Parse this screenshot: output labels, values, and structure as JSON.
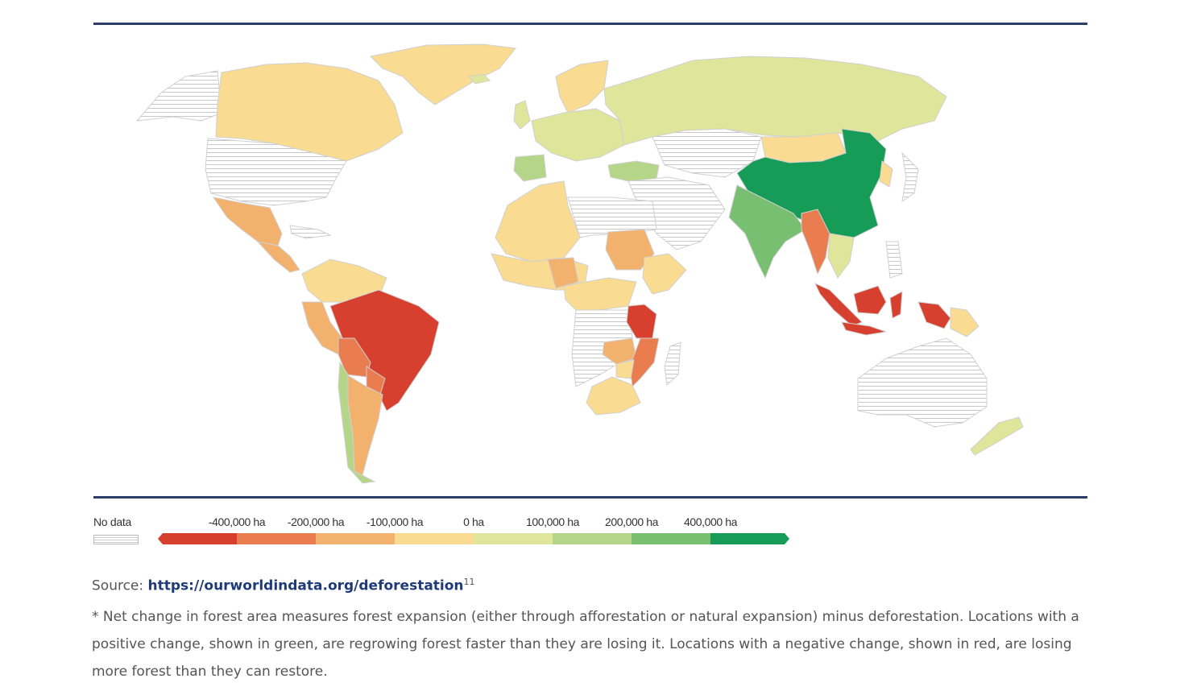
{
  "legend": {
    "no_data_label": "No data",
    "scale_labels": [
      "-400,000 ha",
      "-200,000 ha",
      "-100,000 ha",
      "0 ha",
      "100,000 ha",
      "200,000 ha",
      "400,000 ha"
    ],
    "scale_colors": [
      "#d73f2e",
      "#ea7d4f",
      "#f3b16e",
      "#f9dc92",
      "#dfe59a",
      "#b5d688",
      "#79bf71",
      "#169c57"
    ]
  },
  "source": {
    "prefix": "Source: ",
    "link_text": "https://ourworldindata.org/deforestation",
    "footnote_ref": "11"
  },
  "footnote_text": "* Net change in forest area measures forest expansion (either through afforestation or natural expansion) minus deforestation. Locations with a positive change, shown in green, are regrowing forest faster than they are losing it. Locations with a negative change, shown in red, are losing more forest than they can restore.",
  "colors": {
    "rule": "#2c3e66",
    "link": "#1f3a78",
    "country_border": "#ffffff"
  }
}
